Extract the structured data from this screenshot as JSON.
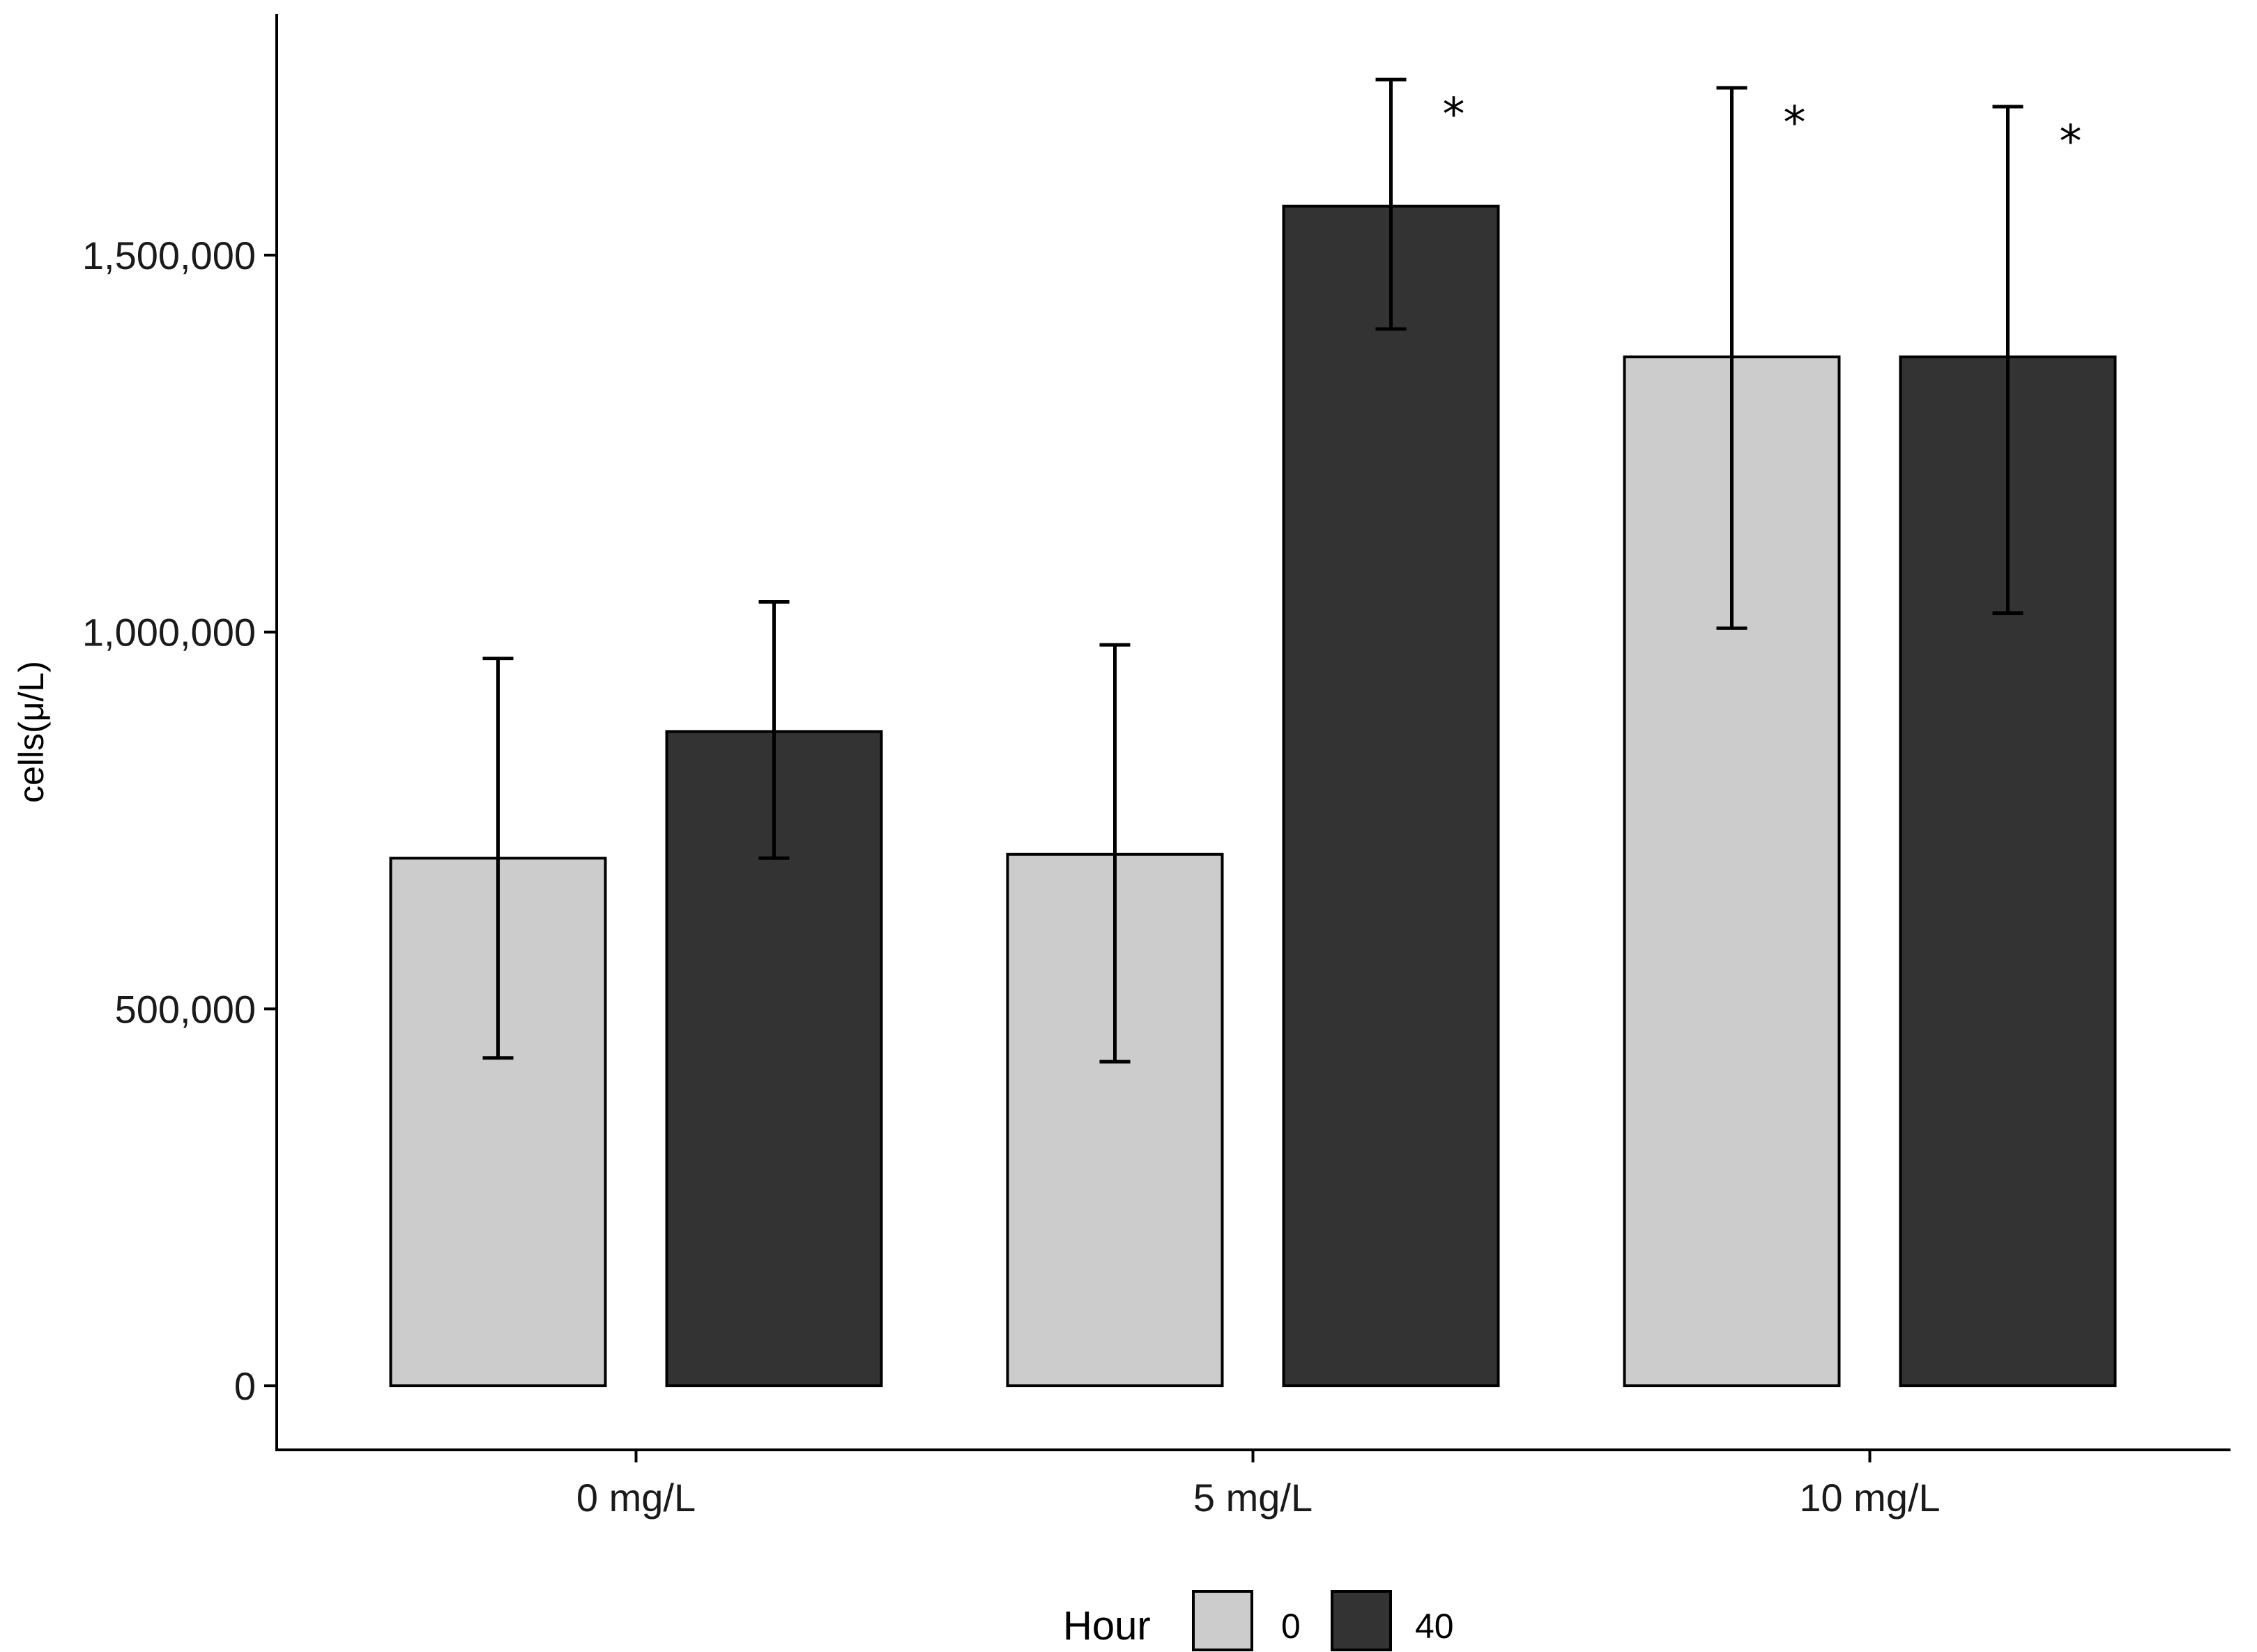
{
  "chart_data": {
    "type": "bar",
    "title": "",
    "xlabel": "",
    "ylabel": "cells(μ/L)",
    "categories": [
      "0 mg/L",
      "5 mg/L",
      "10 mg/L"
    ],
    "ylim": [
      -85000,
      1820000
    ],
    "yticks": [
      0,
      500000,
      1000000,
      1500000
    ],
    "ytick_labels": [
      "0",
      "500,000",
      "1,000,000",
      "1,500,000"
    ],
    "legend": {
      "title": "Hour",
      "position": "bottom"
    },
    "series": [
      {
        "name": "0",
        "color": "#cccccc",
        "values": [
          700000,
          705000,
          1365000
        ],
        "error_low": [
          435000,
          430000,
          1005000
        ],
        "error_high": [
          965000,
          983000,
          1722000
        ],
        "significance": [
          "",
          "",
          "*"
        ]
      },
      {
        "name": "40",
        "color": "#333333",
        "values": [
          868000,
          1565000,
          1365000
        ],
        "error_low": [
          700000,
          1402000,
          1025000
        ],
        "error_high": [
          1040000,
          1733000,
          1697000
        ],
        "significance": [
          "",
          "*",
          "*"
        ]
      }
    ]
  }
}
